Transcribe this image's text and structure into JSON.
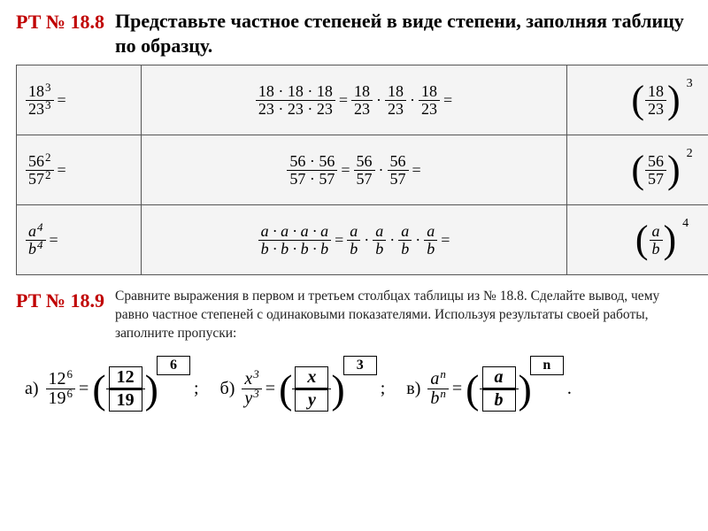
{
  "heading": {
    "rt188": "РТ № 18.8",
    "title": "Представьте частное степеней в виде степени, заполняя таблицу по образцу."
  },
  "table": {
    "rows": [
      {
        "left": "18^3 / 23^3",
        "left_num": "18",
        "left_den": "23",
        "left_exp": "3",
        "mid_full_num": "18 · 18 · 18",
        "mid_full_den": "23 · 23 · 23",
        "mid_parts": 3,
        "right_num": "18",
        "right_den": "23",
        "right_exp": "3"
      },
      {
        "left": "56^2 / 57^2",
        "left_num": "56",
        "left_den": "57",
        "left_exp": "2",
        "mid_full_num": "56 · 56",
        "mid_full_den": "57 · 57",
        "mid_parts": 2,
        "right_num": "56",
        "right_den": "57",
        "right_exp": "2"
      },
      {
        "left": "a^4 / b^4",
        "left_num": "a",
        "left_den": "b",
        "left_exp": "4",
        "mid_full_num": "a · a · a · a",
        "mid_full_den": "b · b · b · b",
        "mid_parts": 4,
        "right_num": "a",
        "right_den": "b",
        "right_exp": "4"
      }
    ]
  },
  "rt189": "РТ № 18.9",
  "desc": "Сравните выражения в первом и третьем столбцах таблицы из № 18.8. Сделайте вывод, чему равно частное степеней с одинаковыми показателями. Используя результаты своей работы, заполните пропуски:",
  "bottom": {
    "a": {
      "lab": "а)",
      "base_num": "12",
      "base_den": "19",
      "exp": "6",
      "ans_num": "12",
      "ans_den": "19",
      "ans_exp": "6"
    },
    "b": {
      "lab": "б)",
      "base_num": "x",
      "base_den": "y",
      "exp": "3",
      "ans_num": "x",
      "ans_den": "y",
      "ans_exp": "3"
    },
    "c": {
      "lab": "в)",
      "base_num": "a",
      "base_den": "b",
      "exp": "n",
      "ans_num": "a",
      "ans_den": "b",
      "ans_exp": "n"
    }
  },
  "symbols": {
    "eq": " = ",
    "dot": "·",
    "semicolon": ";",
    "period": "."
  }
}
